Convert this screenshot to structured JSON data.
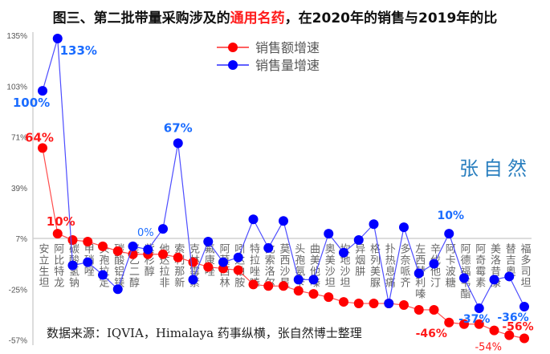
{
  "title": {
    "prefix": "图三、第二批带量采购涉及的",
    "highlight": "通用名药",
    "suffix": "，在2020年的销售与2019年的比"
  },
  "footnote": "数据来源：IQVIA，Himalaya 药事纵横，张自然博士整理",
  "watermark": "张自然",
  "chart_data": {
    "type": "line",
    "title": "图三、第二批带量采购涉及的通用名药，在2020年的销售与2019年的比",
    "ylim": [
      -57,
      135
    ],
    "yticks": [
      "135%",
      "103%",
      "71%",
      "39%",
      "7%",
      "-25%",
      "-57%"
    ],
    "ytick_values": [
      135,
      103,
      71,
      39,
      7,
      -25,
      -57
    ],
    "legend_position": "top-center",
    "categories": [
      "安立生坦",
      "阿比特龙",
      "碳酸氢钠",
      "甲硝唑",
      "头孢拉定",
      "碳酸铝镁",
      "聚乙二醇",
      "紫杉醇",
      "他达拉非",
      "索利那新",
      "克林霉素",
      "氟康唑",
      "阿莫西林",
      "吲达帕胺",
      "特拉唑嗪",
      "比索洛尔",
      "莫西沙星",
      "头孢氨苄",
      "曲美他嗪",
      "奥美沙坦",
      "坎地沙坦",
      "异烟肼",
      "格列美脲",
      "扑热息痛",
      "多奈哌齐",
      "左西替利嗪",
      "辛伐他汀",
      "阿卡波糖",
      "阿德福韦酯",
      "阿奇霉素",
      "美洛昔康",
      "替吉奥",
      "福多司坦"
    ],
    "series": [
      {
        "name": "销售额增速",
        "color": "#ff0000",
        "values": [
          64,
          10,
          6,
          5,
          2,
          -1,
          -3,
          -3,
          -3,
          -5,
          -8,
          -11,
          -12,
          -13,
          -22,
          -23,
          -23,
          -26,
          -28,
          -30,
          -33,
          -34,
          -34,
          -34,
          -35,
          -38,
          -38,
          -46,
          -47,
          -47,
          -51,
          -54,
          -56
        ],
        "labels": [
          {
            "index": 0,
            "text": "64%"
          },
          {
            "index": 1,
            "text": "10%"
          },
          {
            "index": 27,
            "text": "-46%"
          },
          {
            "index": 31,
            "text": "-54%"
          },
          {
            "index": 32,
            "text": "-56%"
          }
        ]
      },
      {
        "name": "销售量增速",
        "color": "#0000ff",
        "values": [
          100,
          133,
          -10,
          -8,
          -16,
          -25,
          2,
          0,
          13,
          67,
          -19,
          5,
          -8,
          -5,
          19,
          1,
          18,
          -19,
          -19,
          10,
          -2,
          6,
          16,
          -34,
          14,
          -15,
          -9,
          10,
          -18,
          -37,
          -19,
          -17,
          -36
        ],
        "labels": [
          {
            "index": 0,
            "text": "100%"
          },
          {
            "index": 1,
            "text": "133%"
          },
          {
            "index": 7,
            "text": "0%"
          },
          {
            "index": 9,
            "text": "67%"
          },
          {
            "index": 27,
            "text": "10%"
          },
          {
            "index": 29,
            "text": "-37%"
          },
          {
            "index": 32,
            "text": "-36%"
          }
        ]
      }
    ]
  }
}
